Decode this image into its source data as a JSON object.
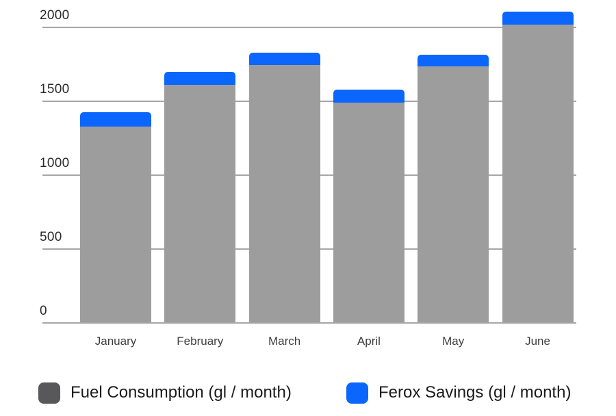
{
  "chart_data": {
    "type": "bar",
    "stacked": true,
    "title": "",
    "categories": [
      "January",
      "February",
      "March",
      "April",
      "May",
      "June"
    ],
    "series": [
      {
        "name": "Fuel Consumption (gl / month)",
        "values": [
          1330,
          1610,
          1745,
          1490,
          1735,
          2020
        ],
        "bar_color": "#9d9d9d",
        "legend_color": "#58585a"
      },
      {
        "name": "Ferox Savings (gl / month)",
        "values": [
          95,
          90,
          85,
          90,
          80,
          85
        ],
        "bar_color": "#0b66fd",
        "legend_color": "#0b66fd"
      }
    ],
    "y_ticks": [
      2000,
      1500,
      1000,
      500,
      0
    ],
    "ylim": [
      0,
      2000
    ],
    "grid": true,
    "legend_position": "bottom",
    "colors": {
      "gridline": "#a6a6a6",
      "axis_tick_text": "#2a2a2a",
      "category_text": "#3d3d3d",
      "legend_text": "#1b1b1d",
      "background": "#ffffff"
    }
  }
}
